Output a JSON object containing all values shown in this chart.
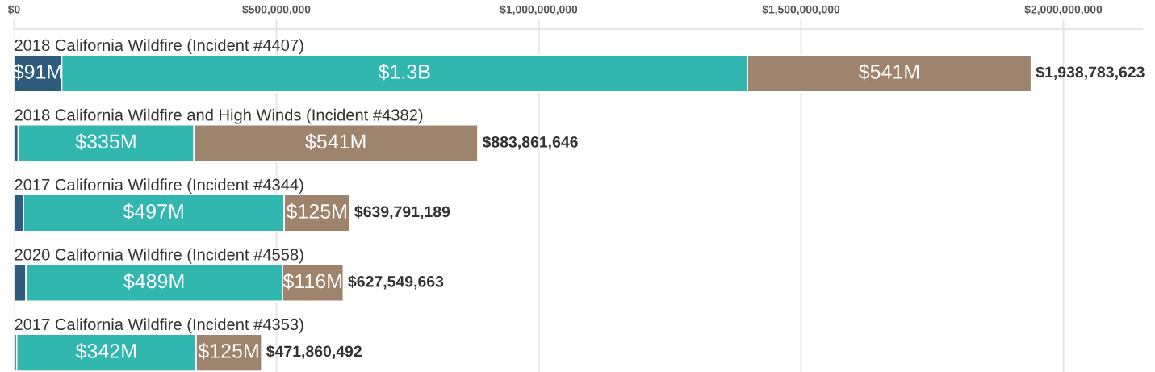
{
  "chart_data": {
    "type": "bar",
    "orientation": "horizontal",
    "stacked": true,
    "categories": [
      "2018 California Wildfire (Incident #4407)",
      "2018 California Wildfire and High Winds (Incident #4382)",
      "2017 California Wildfire (Incident #4344)",
      "2020 California Wildfire (Incident #4558)",
      "2017 California Wildfire (Incident #4353)"
    ],
    "series": [
      {
        "color": "#2f5b7d",
        "values": [
          90783623,
          7861646,
          17791189,
          22549663,
          4860492
        ],
        "value_labels": [
          "$91M",
          null,
          null,
          null,
          null
        ]
      },
      {
        "color": "#31b7af",
        "values": [
          1307000000,
          335000000,
          497000000,
          489000000,
          342000000
        ],
        "value_labels": [
          "$1.3B",
          "$335M",
          "$497M",
          "$489M",
          "$342M"
        ]
      },
      {
        "color": "#9e836d",
        "values": [
          541000000,
          541000000,
          125000000,
          116000000,
          125000000
        ],
        "value_labels": [
          "$541M",
          "$541M",
          "$125M",
          "$116M",
          "$125M"
        ]
      }
    ],
    "totals": [
      "$1,938,783,623",
      "$883,861,646",
      "$639,791,189",
      "$627,549,663",
      "$471,860,492"
    ],
    "xlim": [
      0,
      2150000000
    ],
    "xticks": [
      {
        "value": 0,
        "label": "$0"
      },
      {
        "value": 500000000,
        "label": "$500,000,000"
      },
      {
        "value": 1000000000,
        "label": "$1,000,000,000"
      },
      {
        "value": 1500000000,
        "label": "$1,500,000,000"
      },
      {
        "value": 2000000000,
        "label": "$2,000,000,000"
      }
    ],
    "grid": "x"
  }
}
